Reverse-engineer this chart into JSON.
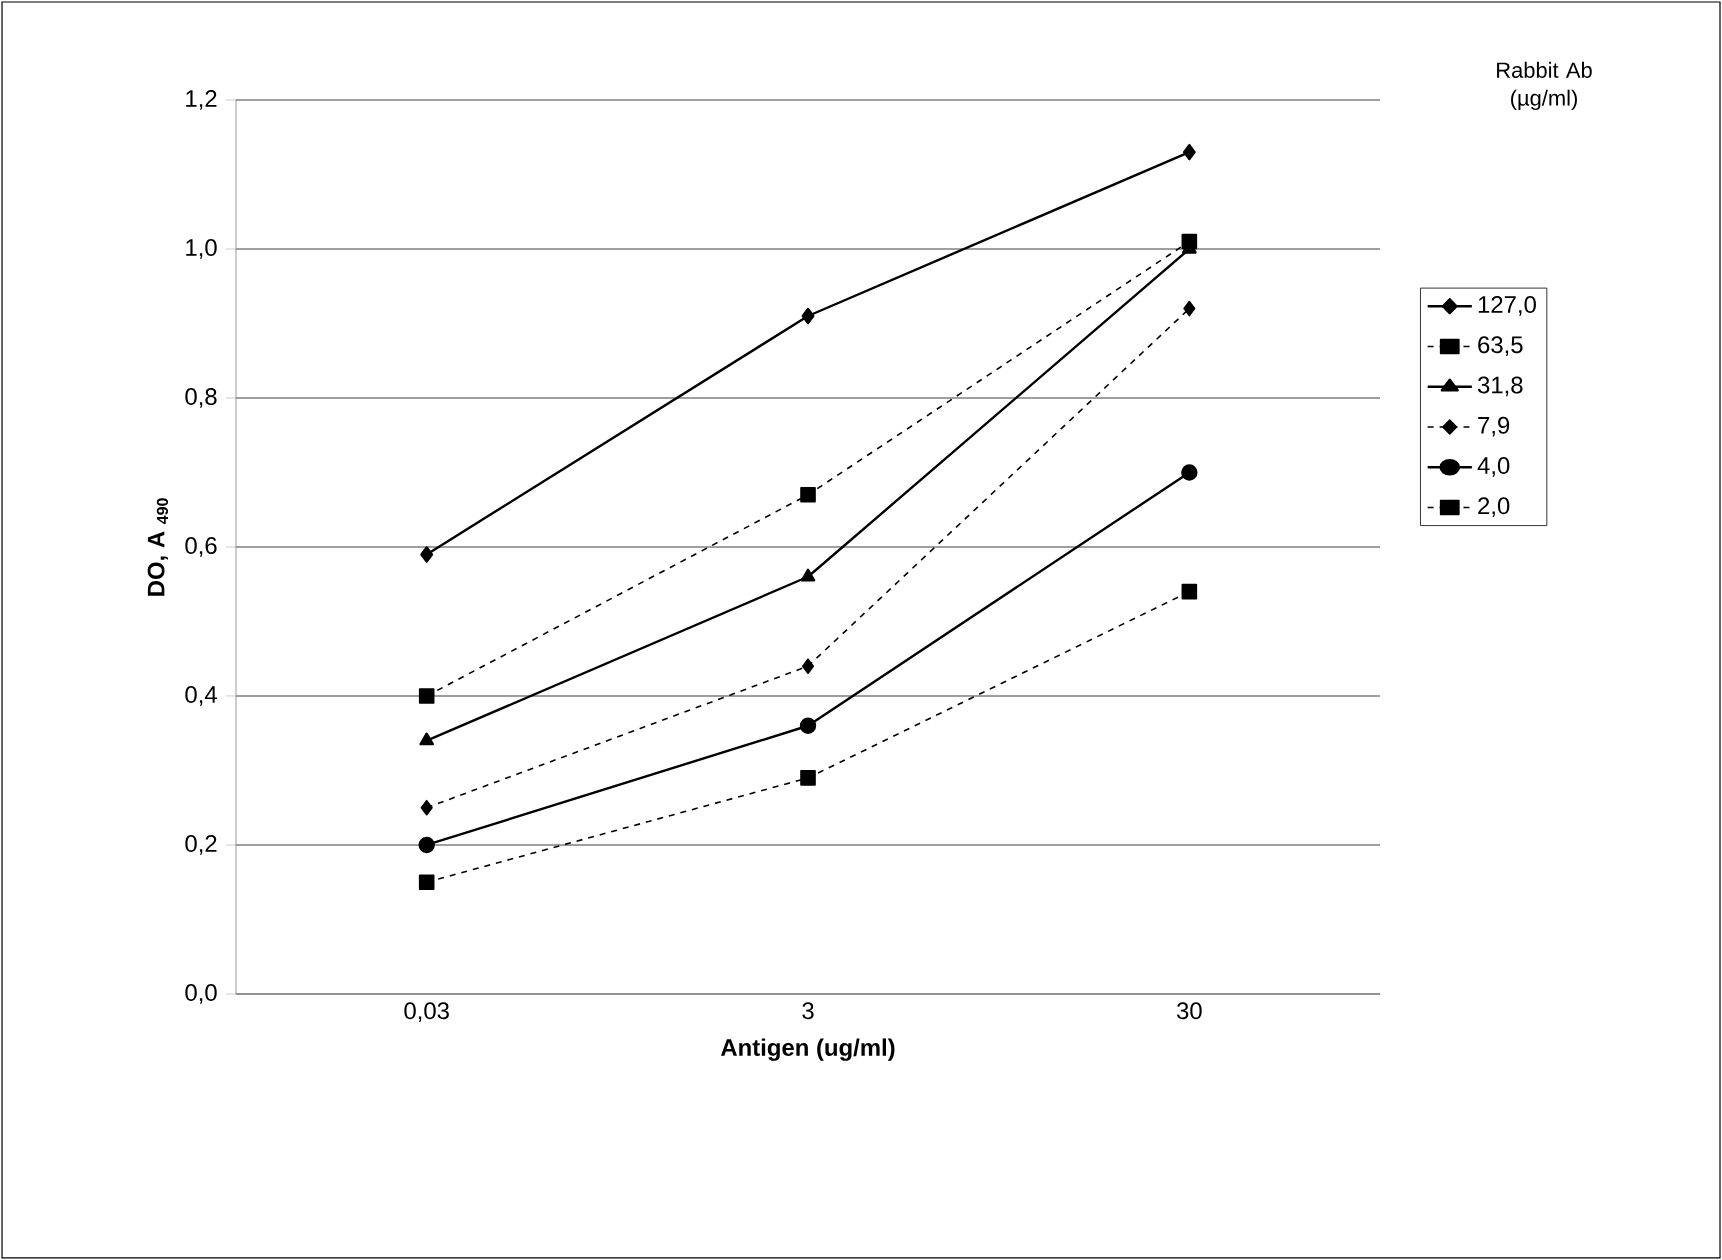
{
  "chart_data": {
    "type": "line",
    "xlabel": "Antigen (ug/ml)",
    "ylabel": "DO, A $_{490}$",
    "legend_title": "Rabbit Ab (µg/ml)",
    "categories": [
      "0,03",
      "3",
      "30"
    ],
    "ylim": [
      0,
      1.2
    ],
    "yticks": [
      {
        "value": 0,
        "label": "0,0"
      },
      {
        "value": 0.2,
        "label": "0,2"
      },
      {
        "value": 0.4,
        "label": "0,4"
      },
      {
        "value": 0.6,
        "label": "0,6"
      },
      {
        "value": 0.8,
        "label": "0,8"
      },
      {
        "value": 1.0,
        "label": "1,0"
      },
      {
        "value": 1.2,
        "label": "1,2"
      }
    ],
    "grid": "y",
    "legend": "right",
    "series": [
      {
        "name": "127,0",
        "color": "#000000",
        "marker": "diamond",
        "line_style": "solid",
        "values": [
          0.59,
          0.91,
          1.13
        ]
      },
      {
        "name": "63,5",
        "color": "#000000",
        "marker": "square",
        "line_style": "dashed",
        "values": [
          0.4,
          0.67,
          1.01
        ]
      },
      {
        "name": "31,8",
        "color": "#000000",
        "marker": "triangle",
        "line_style": "solid",
        "values": [
          0.34,
          0.56,
          1.0
        ]
      },
      {
        "name": "7,9",
        "color": "#000000",
        "marker": "diamond",
        "line_style": "dashed",
        "values": [
          0.25,
          0.44,
          0.92
        ]
      },
      {
        "name": "4,0",
        "color": "#000000",
        "marker": "circle",
        "line_style": "solid",
        "values": [
          0.2,
          0.36,
          0.7
        ]
      },
      {
        "name": "2,0",
        "color": "#000000",
        "marker": "square",
        "line_style": "dashed",
        "values": [
          0.15,
          0.29,
          0.54
        ]
      }
    ]
  }
}
